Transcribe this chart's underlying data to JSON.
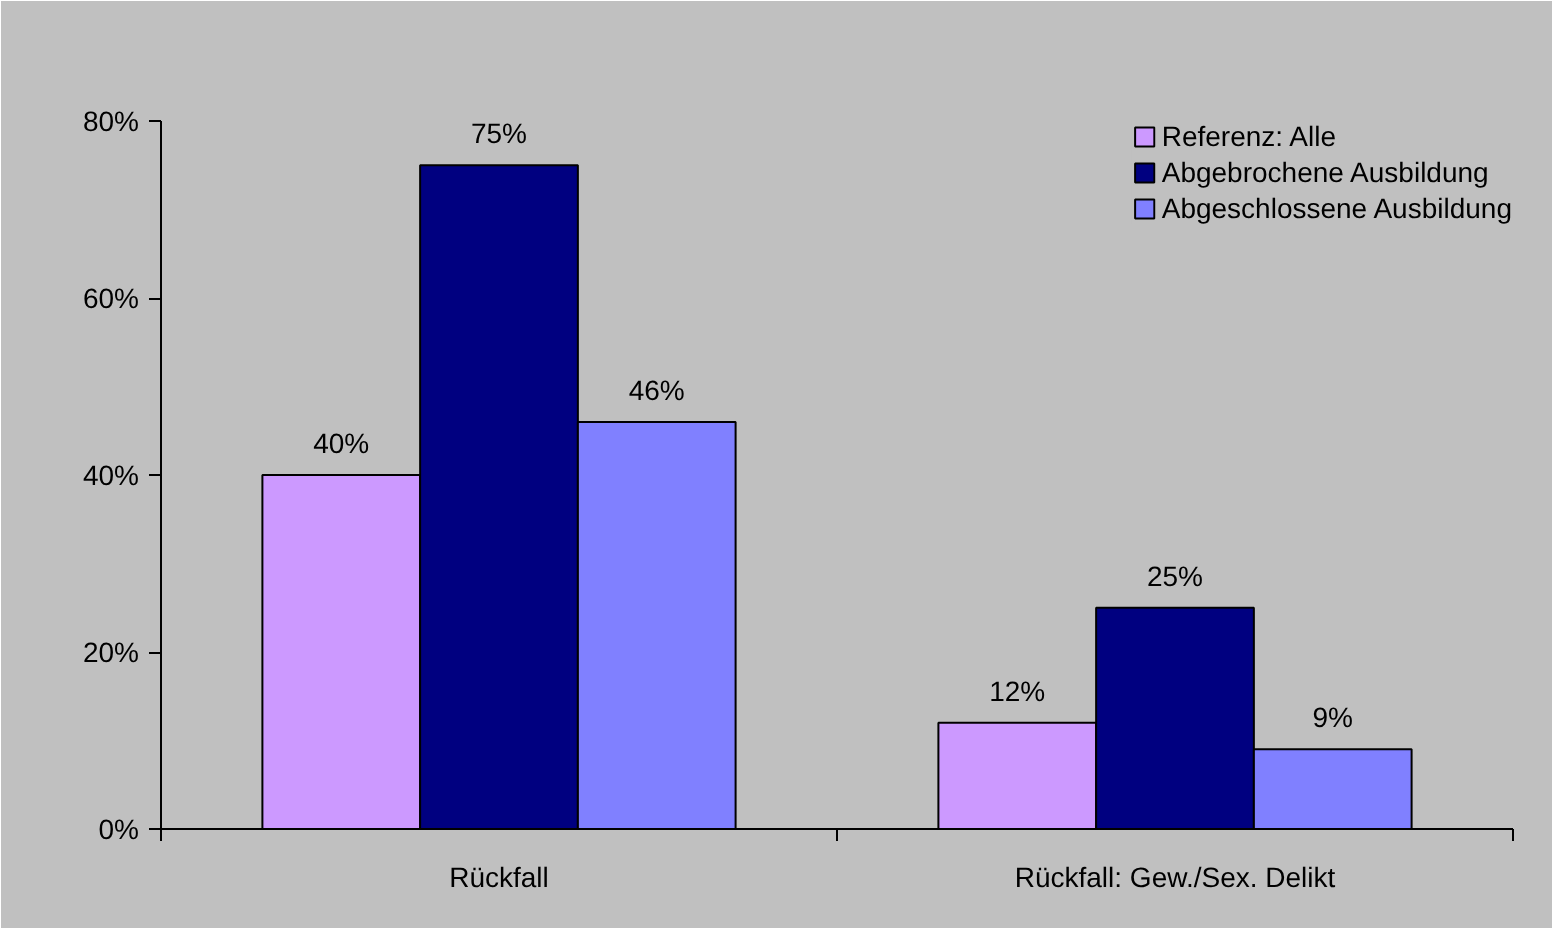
{
  "chart_data": {
    "type": "bar",
    "categories": [
      "Rückfall",
      "Rückfall: Gew./Sex. Delikt"
    ],
    "series": [
      {
        "name": "Referenz: Alle",
        "color": "#cc99ff",
        "values": [
          40,
          12
        ],
        "value_labels": [
          "40%",
          "12%"
        ]
      },
      {
        "name": "Abgebrochene Ausbildung",
        "color": "#000080",
        "values": [
          75,
          25
        ],
        "value_labels": [
          "75%",
          "25%"
        ]
      },
      {
        "name": "Abgeschlossene Ausbildung",
        "color": "#8080ff",
        "values": [
          46,
          9
        ],
        "value_labels": [
          "46%",
          "9%"
        ]
      }
    ],
    "ylim": [
      0,
      80
    ],
    "yticks": [
      {
        "value": 0,
        "label": "0%"
      },
      {
        "value": 20,
        "label": "20%"
      },
      {
        "value": 40,
        "label": "40%"
      },
      {
        "value": 60,
        "label": "60%"
      },
      {
        "value": 80,
        "label": "80%"
      }
    ],
    "grid": false,
    "legend": "top right"
  }
}
